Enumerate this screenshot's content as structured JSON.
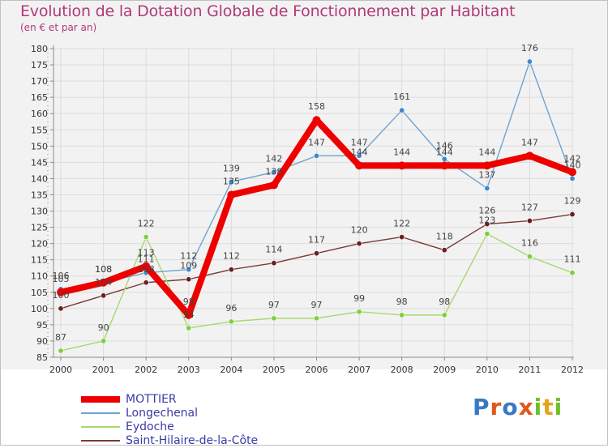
{
  "title": "Evolution de la Dotation Globale de Fonctionnement par Habitant",
  "subtitle": "(en € et par an)",
  "logo": {
    "text": "Proxiti",
    "letters": [
      "P",
      "r",
      "o",
      "x",
      "i",
      "t",
      "i"
    ],
    "colors": [
      "#3a78c4",
      "#e0561a",
      "#3a78c4",
      "#e0561a",
      "#6fbf2a",
      "#e9a11a",
      "#6fbf2a"
    ]
  },
  "chart_data": {
    "type": "line",
    "title": "Evolution de la Dotation Globale de Fonctionnement par Habitant",
    "ylabel": "(en € et par an)",
    "xlabel": "",
    "ylim": [
      85,
      180
    ],
    "y_tick_step": 5,
    "grid": true,
    "legend_position": "bottom-left",
    "categories": [
      "2000",
      "2001",
      "2002",
      "2003",
      "2004",
      "2005",
      "2006",
      "2007",
      "2008",
      "2009",
      "2010",
      "2011",
      "2012"
    ],
    "series": [
      {
        "name": "MOTTIER",
        "color": "#ee0000",
        "marker": "#ee0000",
        "values": [
          105,
          108,
          113,
          98,
          135,
          138,
          158,
          144,
          144,
          144,
          144,
          147,
          142
        ],
        "labels": [
          "105",
          "108",
          "113",
          "98",
          "135",
          "138",
          "158",
          "144",
          "144",
          "144",
          "144",
          "147",
          "142"
        ]
      },
      {
        "name": "Longechenal",
        "color": "#6fa3d0",
        "marker": "#3a8ad0",
        "values": [
          106,
          108,
          111,
          112,
          139,
          142,
          147,
          147,
          161,
          146,
          137,
          176,
          140
        ],
        "labels": [
          "106",
          "108",
          "111",
          "112",
          "139",
          "142",
          "147",
          "147",
          "161",
          "146",
          "137",
          "176",
          "140"
        ]
      },
      {
        "name": "Eydoche",
        "color": "#a8d870",
        "marker": "#7fcf3a",
        "values": [
          87,
          90,
          122,
          94,
          96,
          97,
          97,
          99,
          98,
          98,
          123,
          116,
          111
        ],
        "labels": [
          "87",
          "90",
          "122",
          "94",
          "96",
          "97",
          "97",
          "99",
          "98",
          "98",
          "123",
          "116",
          "111"
        ]
      },
      {
        "name": "Saint-Hilaire-de-la-Côte",
        "color": "#7a3a3a",
        "marker": "#6a2020",
        "values": [
          100,
          104,
          108,
          109,
          112,
          114,
          117,
          120,
          122,
          118,
          126,
          127,
          129
        ],
        "labels": [
          "100",
          "104",
          "108",
          "109",
          "112",
          "114",
          "117",
          "120",
          "122",
          "118",
          "126",
          "127",
          "129"
        ]
      }
    ]
  }
}
